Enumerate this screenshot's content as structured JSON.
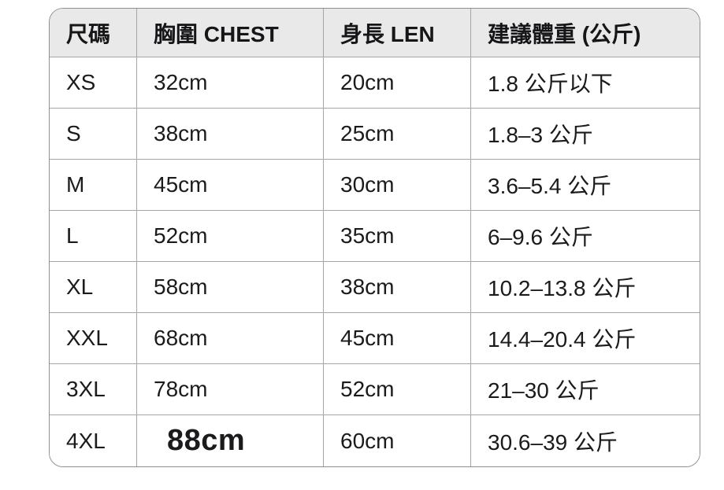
{
  "chart_data": {
    "type": "table",
    "columns": [
      "尺碼",
      "胸圍 CHEST",
      "身長 LEN",
      "建議體重 (公斤)"
    ],
    "rows": [
      [
        "XS",
        "32cm",
        "20cm",
        "1.8 公斤以下"
      ],
      [
        "S",
        "38cm",
        "25cm",
        "1.8–3 公斤"
      ],
      [
        "M",
        "45cm",
        "30cm",
        "3.6–5.4 公斤"
      ],
      [
        "L",
        "52cm",
        "35cm",
        "6–9.6 公斤"
      ],
      [
        "XL",
        "58cm",
        "38cm",
        "10.2–13.8 公斤"
      ],
      [
        "XXL",
        "68cm",
        "45cm",
        "14.4–20.4 公斤"
      ],
      [
        "3XL",
        "78cm",
        "52cm",
        "21–30 公斤"
      ],
      [
        "4XL",
        "88cm",
        "60cm",
        "30.6–39 公斤"
      ]
    ],
    "emphasis": {
      "row_index": 7,
      "column_index": 1
    },
    "layout": {
      "header_position": "top",
      "grid": true,
      "rounded_corners": true
    }
  },
  "colors": {
    "header_background": "#e9e9ea",
    "row_background": "#ffffff",
    "border": "#a6a6a8",
    "outer_border": "#8f8f92",
    "text": "#1b1b1d"
  }
}
